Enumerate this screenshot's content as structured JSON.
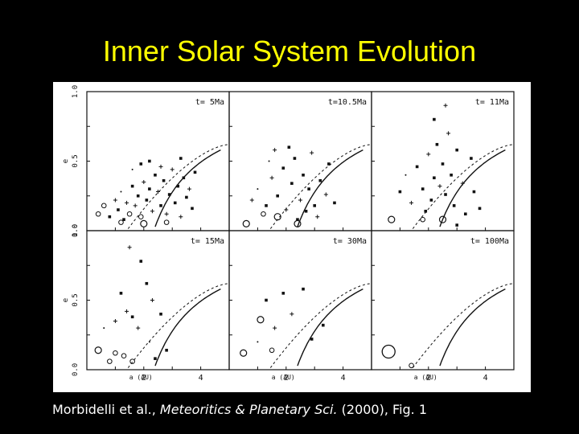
{
  "slide": {
    "title": "Inner Solar System Evolution",
    "caption_authors": "Morbidelli et al., ",
    "caption_journal": "Meteoritics & Planetary Sci.",
    "caption_rest": " (2000), Fig. 1"
  },
  "colors": {
    "background": "#000000",
    "title": "#ffff00",
    "caption": "#ffffff",
    "figure_bg": "#ffffff",
    "ink": "#111111"
  },
  "axis_labels": {
    "x": "a (AU)",
    "y": "e"
  },
  "y_ticks": [
    "0.0",
    "0.5",
    "1.0"
  ],
  "x_ticks": [
    "2",
    "4"
  ],
  "chart_data": [
    {
      "type": "scatter",
      "label": "t=  5Ma",
      "xlim": [
        0,
        5
      ],
      "ylim": [
        0,
        1
      ],
      "points": [
        {
          "x": 0.4,
          "y": 0.12,
          "m": "o"
        },
        {
          "x": 0.6,
          "y": 0.18,
          "m": "o"
        },
        {
          "x": 0.8,
          "y": 0.1,
          "m": "x"
        },
        {
          "x": 1.0,
          "y": 0.22,
          "m": "+"
        },
        {
          "x": 1.1,
          "y": 0.15,
          "m": "x"
        },
        {
          "x": 1.2,
          "y": 0.28,
          "m": "."
        },
        {
          "x": 1.3,
          "y": 0.08,
          "m": "x"
        },
        {
          "x": 1.4,
          "y": 0.2,
          "m": "+"
        },
        {
          "x": 1.5,
          "y": 0.12,
          "m": "o"
        },
        {
          "x": 1.6,
          "y": 0.32,
          "m": "x"
        },
        {
          "x": 1.7,
          "y": 0.18,
          "m": "+"
        },
        {
          "x": 1.8,
          "y": 0.25,
          "m": "x"
        },
        {
          "x": 1.9,
          "y": 0.1,
          "m": "o"
        },
        {
          "x": 2.0,
          "y": 0.35,
          "m": "+"
        },
        {
          "x": 2.1,
          "y": 0.22,
          "m": "x"
        },
        {
          "x": 2.2,
          "y": 0.3,
          "m": "x"
        },
        {
          "x": 2.3,
          "y": 0.14,
          "m": "+"
        },
        {
          "x": 2.4,
          "y": 0.4,
          "m": "x"
        },
        {
          "x": 2.5,
          "y": 0.28,
          "m": "+"
        },
        {
          "x": 2.6,
          "y": 0.18,
          "m": "x"
        },
        {
          "x": 2.7,
          "y": 0.36,
          "m": "x"
        },
        {
          "x": 2.8,
          "y": 0.12,
          "m": "+"
        },
        {
          "x": 2.9,
          "y": 0.26,
          "m": "x"
        },
        {
          "x": 3.0,
          "y": 0.44,
          "m": "+"
        },
        {
          "x": 3.1,
          "y": 0.2,
          "m": "x"
        },
        {
          "x": 3.2,
          "y": 0.32,
          "m": "x"
        },
        {
          "x": 3.3,
          "y": 0.1,
          "m": "+"
        },
        {
          "x": 3.4,
          "y": 0.38,
          "m": "x"
        },
        {
          "x": 3.5,
          "y": 0.24,
          "m": "x"
        },
        {
          "x": 3.6,
          "y": 0.3,
          "m": "+"
        },
        {
          "x": 3.7,
          "y": 0.16,
          "m": "x"
        },
        {
          "x": 3.8,
          "y": 0.42,
          "m": "x"
        },
        {
          "x": 2.2,
          "y": 0.5,
          "m": "x"
        },
        {
          "x": 2.6,
          "y": 0.46,
          "m": "+"
        },
        {
          "x": 1.9,
          "y": 0.48,
          "m": "x"
        },
        {
          "x": 3.3,
          "y": 0.52,
          "m": "x"
        },
        {
          "x": 2.0,
          "y": 0.05,
          "m": "O"
        },
        {
          "x": 1.2,
          "y": 0.06,
          "m": "o"
        },
        {
          "x": 2.8,
          "y": 0.06,
          "m": "o"
        },
        {
          "x": 1.6,
          "y": 0.44,
          "m": "."
        }
      ]
    },
    {
      "type": "scatter",
      "label": "t=10.5Ma",
      "xlim": [
        0,
        5
      ],
      "ylim": [
        0,
        1
      ],
      "points": [
        {
          "x": 0.8,
          "y": 0.22,
          "m": "+"
        },
        {
          "x": 1.0,
          "y": 0.3,
          "m": "."
        },
        {
          "x": 1.3,
          "y": 0.18,
          "m": "x"
        },
        {
          "x": 1.5,
          "y": 0.38,
          "m": "+"
        },
        {
          "x": 1.7,
          "y": 0.25,
          "m": "x"
        },
        {
          "x": 1.9,
          "y": 0.45,
          "m": "x"
        },
        {
          "x": 2.0,
          "y": 0.15,
          "m": "+"
        },
        {
          "x": 2.2,
          "y": 0.34,
          "m": "x"
        },
        {
          "x": 2.3,
          "y": 0.52,
          "m": "x"
        },
        {
          "x": 2.5,
          "y": 0.22,
          "m": "+"
        },
        {
          "x": 2.6,
          "y": 0.4,
          "m": "x"
        },
        {
          "x": 2.8,
          "y": 0.3,
          "m": "x"
        },
        {
          "x": 2.9,
          "y": 0.56,
          "m": "+"
        },
        {
          "x": 3.0,
          "y": 0.18,
          "m": "x"
        },
        {
          "x": 3.2,
          "y": 0.36,
          "m": "x"
        },
        {
          "x": 3.4,
          "y": 0.26,
          "m": "+"
        },
        {
          "x": 3.5,
          "y": 0.48,
          "m": "x"
        },
        {
          "x": 3.7,
          "y": 0.2,
          "m": "x"
        },
        {
          "x": 2.1,
          "y": 0.6,
          "m": "x"
        },
        {
          "x": 1.6,
          "y": 0.58,
          "m": "+"
        },
        {
          "x": 2.7,
          "y": 0.14,
          "m": "x"
        },
        {
          "x": 1.4,
          "y": 0.5,
          "m": "."
        },
        {
          "x": 3.1,
          "y": 0.1,
          "m": "+"
        },
        {
          "x": 2.4,
          "y": 0.08,
          "m": "x"
        },
        {
          "x": 0.6,
          "y": 0.05,
          "m": "O"
        },
        {
          "x": 1.7,
          "y": 0.1,
          "m": "O"
        },
        {
          "x": 2.4,
          "y": 0.05,
          "m": "O"
        },
        {
          "x": 1.2,
          "y": 0.12,
          "m": "o"
        }
      ]
    },
    {
      "type": "scatter",
      "label": "t= 11Ma",
      "xlim": [
        0,
        5
      ],
      "ylim": [
        0,
        1
      ],
      "points": [
        {
          "x": 1.0,
          "y": 0.28,
          "m": "x"
        },
        {
          "x": 1.2,
          "y": 0.4,
          "m": "."
        },
        {
          "x": 1.4,
          "y": 0.2,
          "m": "+"
        },
        {
          "x": 1.6,
          "y": 0.46,
          "m": "x"
        },
        {
          "x": 1.8,
          "y": 0.3,
          "m": "x"
        },
        {
          "x": 2.0,
          "y": 0.55,
          "m": "+"
        },
        {
          "x": 2.1,
          "y": 0.22,
          "m": "x"
        },
        {
          "x": 2.2,
          "y": 0.38,
          "m": "x"
        },
        {
          "x": 2.3,
          "y": 0.62,
          "m": "x"
        },
        {
          "x": 2.4,
          "y": 0.32,
          "m": "+"
        },
        {
          "x": 2.5,
          "y": 0.48,
          "m": "x"
        },
        {
          "x": 2.6,
          "y": 0.26,
          "m": "x"
        },
        {
          "x": 2.7,
          "y": 0.7,
          "m": "+"
        },
        {
          "x": 2.8,
          "y": 0.4,
          "m": "x"
        },
        {
          "x": 2.9,
          "y": 0.18,
          "m": "x"
        },
        {
          "x": 3.0,
          "y": 0.58,
          "m": "x"
        },
        {
          "x": 3.2,
          "y": 0.34,
          "m": "+"
        },
        {
          "x": 3.3,
          "y": 0.12,
          "m": "x"
        },
        {
          "x": 3.5,
          "y": 0.52,
          "m": "x"
        },
        {
          "x": 3.6,
          "y": 0.28,
          "m": "x"
        },
        {
          "x": 2.6,
          "y": 0.9,
          "m": "+"
        },
        {
          "x": 2.2,
          "y": 0.8,
          "m": "x"
        },
        {
          "x": 1.9,
          "y": 0.14,
          "m": "x"
        },
        {
          "x": 3.8,
          "y": 0.16,
          "m": "x"
        },
        {
          "x": 0.7,
          "y": 0.08,
          "m": "O"
        },
        {
          "x": 1.8,
          "y": 0.08,
          "m": "o"
        },
        {
          "x": 2.5,
          "y": 0.08,
          "m": "O"
        },
        {
          "x": 3.0,
          "y": 0.04,
          "m": "x"
        }
      ]
    },
    {
      "type": "scatter",
      "label": "t= 15Ma",
      "xlim": [
        0,
        5
      ],
      "ylim": [
        0,
        1
      ],
      "points": [
        {
          "x": 1.0,
          "y": 0.35,
          "m": "+"
        },
        {
          "x": 1.2,
          "y": 0.55,
          "m": "x"
        },
        {
          "x": 1.4,
          "y": 0.42,
          "m": "+"
        },
        {
          "x": 1.6,
          "y": 0.38,
          "m": "x"
        },
        {
          "x": 1.8,
          "y": 0.3,
          "m": "+"
        },
        {
          "x": 2.1,
          "y": 0.62,
          "m": "x"
        },
        {
          "x": 2.3,
          "y": 0.5,
          "m": "+"
        },
        {
          "x": 2.6,
          "y": 0.4,
          "m": "x"
        },
        {
          "x": 2.2,
          "y": 0.2,
          "m": "."
        },
        {
          "x": 2.8,
          "y": 0.14,
          "m": "x"
        },
        {
          "x": 1.5,
          "y": 0.88,
          "m": "+"
        },
        {
          "x": 1.9,
          "y": 0.78,
          "m": "x"
        },
        {
          "x": 2.4,
          "y": 0.08,
          "m": "x"
        },
        {
          "x": 0.6,
          "y": 0.3,
          "m": "."
        },
        {
          "x": 0.4,
          "y": 0.14,
          "m": "O"
        },
        {
          "x": 0.8,
          "y": 0.06,
          "m": "o"
        },
        {
          "x": 1.3,
          "y": 0.1,
          "m": "o"
        },
        {
          "x": 1.6,
          "y": 0.06,
          "m": "o"
        },
        {
          "x": 1.0,
          "y": 0.12,
          "m": "o"
        }
      ]
    },
    {
      "type": "scatter",
      "label": "t= 30Ma",
      "xlim": [
        0,
        5
      ],
      "ylim": [
        0,
        1
      ],
      "points": [
        {
          "x": 1.3,
          "y": 0.5,
          "m": "x"
        },
        {
          "x": 1.6,
          "y": 0.3,
          "m": "+"
        },
        {
          "x": 1.9,
          "y": 0.55,
          "m": "x"
        },
        {
          "x": 2.2,
          "y": 0.4,
          "m": "+"
        },
        {
          "x": 2.6,
          "y": 0.58,
          "m": "x"
        },
        {
          "x": 2.9,
          "y": 0.22,
          "m": "x"
        },
        {
          "x": 1.0,
          "y": 0.2,
          "m": "."
        },
        {
          "x": 3.3,
          "y": 0.32,
          "m": "x"
        },
        {
          "x": 0.5,
          "y": 0.12,
          "m": "O"
        },
        {
          "x": 1.1,
          "y": 0.36,
          "m": "O"
        },
        {
          "x": 1.5,
          "y": 0.14,
          "m": "o"
        }
      ]
    },
    {
      "type": "scatter",
      "label": "t= 100Ma",
      "xlim": [
        0,
        5
      ],
      "ylim": [
        0,
        1
      ],
      "points": [
        {
          "x": 0.6,
          "y": 0.13,
          "m": "OO"
        },
        {
          "x": 1.4,
          "y": 0.03,
          "m": "o"
        }
      ]
    }
  ]
}
